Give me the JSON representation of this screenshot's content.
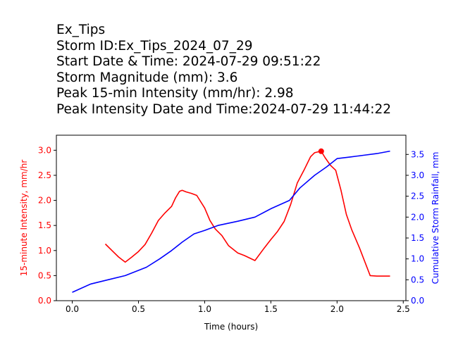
{
  "header": {
    "title": "Ex_Tips",
    "storm_id": "Storm ID:Ex_Tips_2024_07_29",
    "start": "Start Date & Time: 2024-07-29 09:51:22",
    "magnitude": "Storm Magnitude (mm): 3.6",
    "peak_intensity": "Peak 15-min Intensity (mm/hr): 2.98",
    "peak_time": "Peak Intensity Date and Time:2024-07-29 11:44:22"
  },
  "colors": {
    "intensity": "#ff0000",
    "cumulative": "#0000ff",
    "axis": "#000000"
  },
  "chart_data": {
    "type": "line",
    "xlabel": "Time (hours)",
    "ylabel_left": "15-minute Intensity, mm/hr",
    "ylabel_right": "Cumulative Storm Rainfall, mm",
    "xlim": [
      -0.12,
      2.52
    ],
    "ylim_left": [
      0,
      3.3
    ],
    "ylim_right": [
      0,
      3.96
    ],
    "xticks": [
      0.0,
      0.5,
      1.0,
      1.5,
      2.0,
      2.5
    ],
    "xtick_labels": [
      "0.0",
      "0.5",
      "1.0",
      "1.5",
      "2.0",
      "2.5"
    ],
    "yticks_left": [
      0.0,
      0.5,
      1.0,
      1.5,
      2.0,
      2.5,
      3.0
    ],
    "ytick_labels_left": [
      "0.0",
      "0.5",
      "1.0",
      "1.5",
      "2.0",
      "2.5",
      "3.0"
    ],
    "yticks_right": [
      0.0,
      0.5,
      1.0,
      1.5,
      2.0,
      2.5,
      3.0,
      3.5
    ],
    "ytick_labels_right": [
      "0.0",
      "0.5",
      "1.0",
      "1.5",
      "2.0",
      "2.5",
      "3.0",
      "3.5"
    ],
    "grid": false,
    "series": [
      {
        "axis": "left",
        "color": "#ff0000",
        "x": [
          0.25,
          0.3,
          0.35,
          0.4,
          0.45,
          0.5,
          0.55,
          0.6,
          0.65,
          0.7,
          0.75,
          0.78,
          0.81,
          0.83,
          0.86,
          0.9,
          0.94,
          1.0,
          1.04,
          1.08,
          1.13,
          1.18,
          1.25,
          1.3,
          1.38,
          1.45,
          1.5,
          1.55,
          1.6,
          1.65,
          1.7,
          1.75,
          1.8,
          1.83,
          1.86,
          1.88,
          1.91,
          1.95,
          1.99,
          2.03,
          2.07,
          2.11,
          2.17,
          2.25,
          2.3,
          2.4
        ],
        "values": [
          1.13,
          1.0,
          0.87,
          0.77,
          0.87,
          0.98,
          1.12,
          1.35,
          1.6,
          1.75,
          1.88,
          2.05,
          2.18,
          2.2,
          2.17,
          2.14,
          2.1,
          1.85,
          1.6,
          1.43,
          1.3,
          1.1,
          0.95,
          0.9,
          0.8,
          1.05,
          1.22,
          1.38,
          1.58,
          1.92,
          2.35,
          2.6,
          2.87,
          2.95,
          2.97,
          2.98,
          2.85,
          2.7,
          2.6,
          2.2,
          1.72,
          1.42,
          1.05,
          0.5,
          0.49,
          0.49
        ]
      },
      {
        "axis": "right",
        "color": "#0000ff",
        "x": [
          0.0,
          0.14,
          0.27,
          0.4,
          0.56,
          0.66,
          0.75,
          0.83,
          0.92,
          1.0,
          1.1,
          1.25,
          1.38,
          1.5,
          1.64,
          1.72,
          1.83,
          1.92,
          2.0,
          2.1,
          2.2,
          2.3,
          2.4
        ],
        "values": [
          0.2,
          0.4,
          0.5,
          0.6,
          0.8,
          1.0,
          1.2,
          1.4,
          1.6,
          1.68,
          1.8,
          1.9,
          2.0,
          2.2,
          2.4,
          2.7,
          3.0,
          3.2,
          3.4,
          3.44,
          3.48,
          3.52,
          3.58
        ]
      }
    ],
    "peak_marker": {
      "x": 1.88,
      "y": 2.98,
      "axis": "left",
      "color": "#ff0000"
    }
  }
}
